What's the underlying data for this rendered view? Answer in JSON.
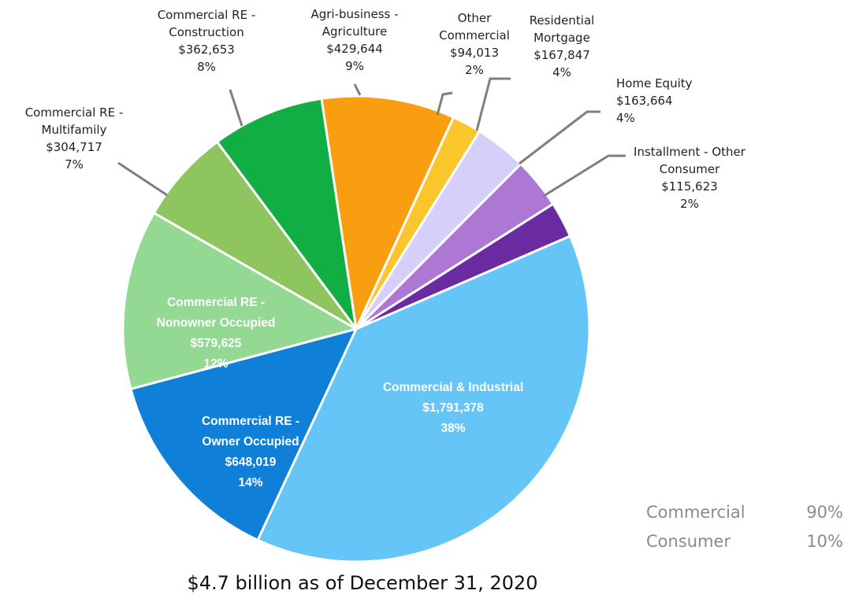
{
  "chart_data": {
    "type": "pie",
    "caption": "$4.7 billion as of December 31, 2020",
    "slices": [
      {
        "lines": [
          "Commercial & Industrial"
        ],
        "amount": "$1,791,378",
        "pct_label": "38%",
        "value": 1791378,
        "color": "#66c5f7",
        "label_inside": true
      },
      {
        "lines": [
          "Commercial RE -",
          "Owner Occupied"
        ],
        "amount": "$648,019",
        "pct_label": "14%",
        "value": 648019,
        "color": "#0f7fd8",
        "label_inside": true
      },
      {
        "lines": [
          "Commercial RE -",
          "Nonowner Occupied"
        ],
        "amount": "$579,625",
        "pct_label": "12%",
        "value": 579625,
        "color": "#93d893",
        "label_inside": true
      },
      {
        "lines": [
          "Commercial RE -",
          "Multifamily"
        ],
        "amount": "$304,717",
        "pct_label": "7%",
        "value": 304717,
        "color": "#8fc55f",
        "label_inside": false
      },
      {
        "lines": [
          "Commercial RE -",
          "Construction"
        ],
        "amount": "$362,653",
        "pct_label": "8%",
        "value": 362653,
        "color": "#10ae43",
        "label_inside": false
      },
      {
        "lines": [
          "Agri-business -",
          "Agriculture"
        ],
        "amount": "$429,644",
        "pct_label": "9%",
        "value": 429644,
        "color": "#f99e10",
        "label_inside": false
      },
      {
        "lines": [
          "Other",
          "Commercial"
        ],
        "amount": "$94,013",
        "pct_label": "2%",
        "value": 94013,
        "color": "#fbc52c",
        "label_inside": false
      },
      {
        "lines": [
          "Residential",
          "Mortgage"
        ],
        "amount": "$167,847",
        "pct_label": "4%",
        "value": 167847,
        "color": "#d6cffa",
        "label_inside": false
      },
      {
        "lines": [
          "Home Equity"
        ],
        "amount": "$163,664",
        "pct_label": "4%",
        "value": 163664,
        "color": "#ad78d4",
        "label_inside": false
      },
      {
        "lines": [
          "Installment - Other",
          "Consumer"
        ],
        "amount": "$115,623",
        "pct_label": "2%",
        "value": 115623,
        "color": "#6a2aa0",
        "label_inside": false
      }
    ],
    "summary": [
      {
        "name": "Commercial",
        "pct": "90%"
      },
      {
        "name": "Consumer",
        "pct": "10%"
      }
    ]
  }
}
